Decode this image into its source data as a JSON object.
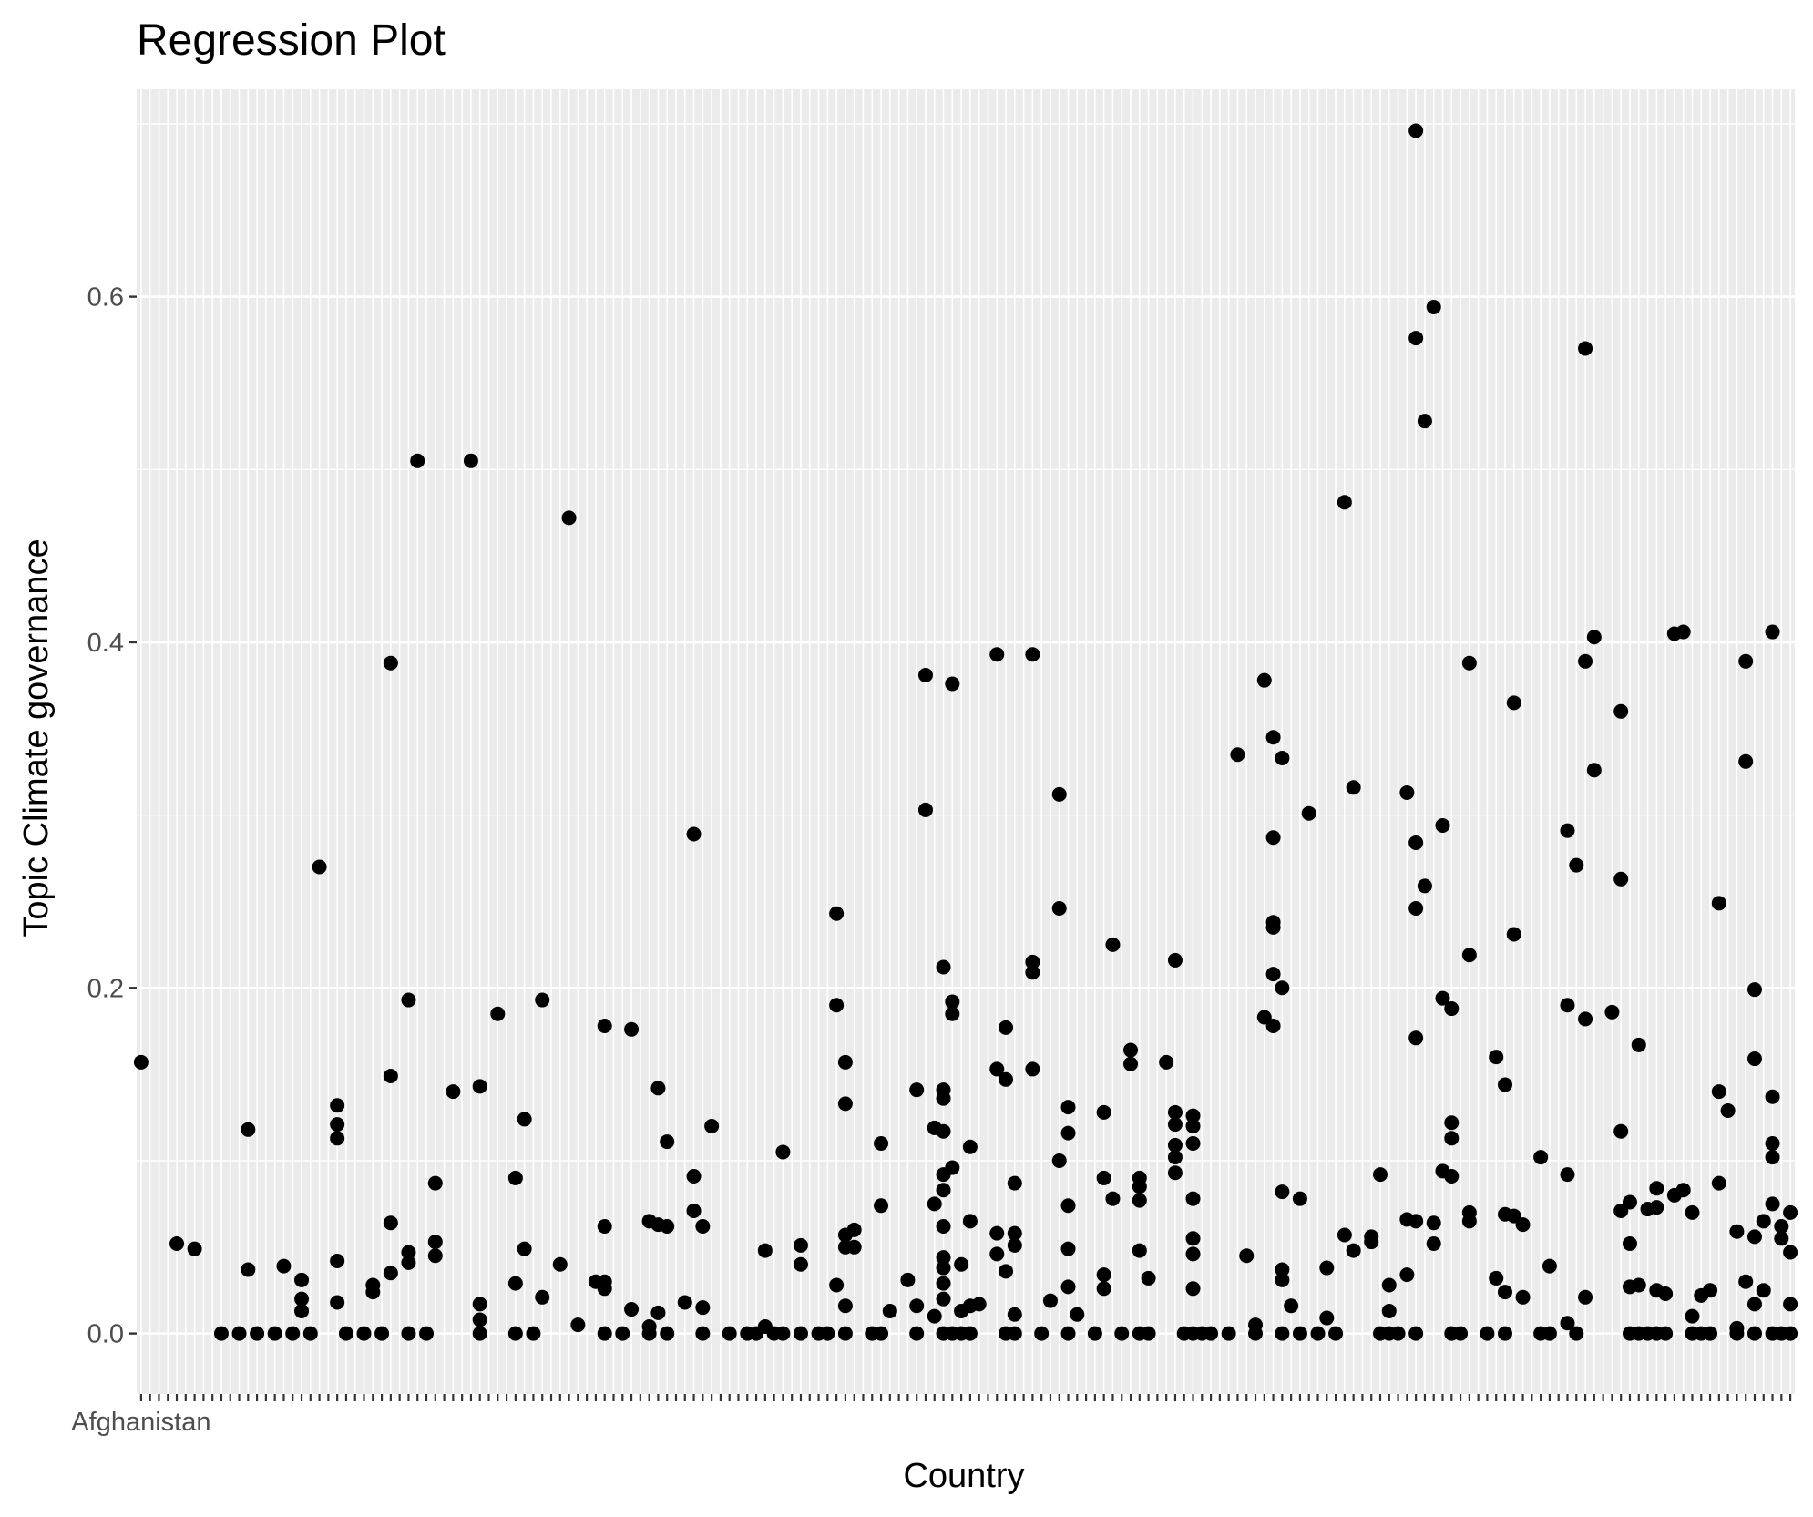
{
  "chart_data": {
    "type": "scatter",
    "title": "Regression Plot",
    "xlabel": "Country",
    "ylabel": "Topic Climate governance",
    "ylim": [
      -0.035,
      0.72
    ],
    "yticks": [
      0.0,
      0.2,
      0.4,
      0.6
    ],
    "ytick_labels": [
      "0.0",
      "0.2",
      "0.4",
      "0.6"
    ],
    "n_categories": 186,
    "first_category_label": "Afghanistan",
    "grid": true,
    "background": "#ebebeb",
    "grid_color": "#ffffff",
    "point_color": "#000000",
    "points": [
      [
        0,
        0.157
      ],
      [
        4,
        0.052
      ],
      [
        6,
        0.049
      ],
      [
        9,
        0.0
      ],
      [
        11,
        0.0
      ],
      [
        12,
        0.037
      ],
      [
        12,
        0.118
      ],
      [
        13,
        0.0
      ],
      [
        15,
        0.0
      ],
      [
        16,
        0.039
      ],
      [
        17,
        0.0
      ],
      [
        18,
        0.031
      ],
      [
        18,
        0.02
      ],
      [
        18,
        0.013
      ],
      [
        19,
        0.0
      ],
      [
        20,
        0.27
      ],
      [
        22,
        0.132
      ],
      [
        22,
        0.121
      ],
      [
        22,
        0.113
      ],
      [
        22,
        0.042
      ],
      [
        22,
        0.018
      ],
      [
        23,
        0.0
      ],
      [
        25,
        0.0
      ],
      [
        26,
        0.028
      ],
      [
        26,
        0.024
      ],
      [
        27,
        0.0
      ],
      [
        28,
        0.388
      ],
      [
        28,
        0.149
      ],
      [
        28,
        0.064
      ],
      [
        28,
        0.035
      ],
      [
        30,
        0.193
      ],
      [
        30,
        0.047
      ],
      [
        30,
        0.041
      ],
      [
        30,
        0.0
      ],
      [
        31,
        0.505
      ],
      [
        32,
        0.0
      ],
      [
        33,
        0.087
      ],
      [
        33,
        0.053
      ],
      [
        33,
        0.045
      ],
      [
        35,
        0.14
      ],
      [
        37,
        0.505
      ],
      [
        38,
        0.143
      ],
      [
        38,
        0.017
      ],
      [
        38,
        0.008
      ],
      [
        38,
        0.0
      ],
      [
        40,
        0.185
      ],
      [
        42,
        0.09
      ],
      [
        42,
        0.029
      ],
      [
        42,
        0.0
      ],
      [
        43,
        0.124
      ],
      [
        43,
        0.049
      ],
      [
        44,
        0.0
      ],
      [
        45,
        0.193
      ],
      [
        45,
        0.021
      ],
      [
        47,
        0.04
      ],
      [
        48,
        0.472
      ],
      [
        49,
        0.005
      ],
      [
        51,
        0.03
      ],
      [
        52,
        0.03
      ],
      [
        52,
        0.178
      ],
      [
        52,
        0.062
      ],
      [
        52,
        0.026
      ],
      [
        52,
        0.0
      ],
      [
        54,
        0.0
      ],
      [
        55,
        0.176
      ],
      [
        55,
        0.014
      ],
      [
        57,
        0.065
      ],
      [
        57,
        0.0
      ],
      [
        57,
        0.004
      ],
      [
        58,
        0.142
      ],
      [
        58,
        0.063
      ],
      [
        58,
        0.012
      ],
      [
        59,
        0.111
      ],
      [
        59,
        0.062
      ],
      [
        59,
        0.0
      ],
      [
        61,
        0.018
      ],
      [
        62,
        0.289
      ],
      [
        62,
        0.091
      ],
      [
        62,
        0.071
      ],
      [
        63,
        0.0
      ],
      [
        63,
        0.015
      ],
      [
        63,
        0.062
      ],
      [
        64,
        0.12
      ],
      [
        66,
        0.0
      ],
      [
        68,
        0.0
      ],
      [
        69,
        0.0
      ],
      [
        70,
        0.048
      ],
      [
        70,
        0.004
      ],
      [
        71,
        0.0
      ],
      [
        72,
        0.0
      ],
      [
        72,
        0.105
      ],
      [
        74,
        0.0
      ],
      [
        74,
        0.04
      ],
      [
        74,
        0.051
      ],
      [
        76,
        0.0
      ],
      [
        77,
        0.0
      ],
      [
        78,
        0.243
      ],
      [
        78,
        0.19
      ],
      [
        78,
        0.028
      ],
      [
        79,
        0.0
      ],
      [
        79,
        0.157
      ],
      [
        79,
        0.133
      ],
      [
        79,
        0.057
      ],
      [
        79,
        0.05
      ],
      [
        79,
        0.016
      ],
      [
        80,
        0.05
      ],
      [
        80,
        0.06
      ],
      [
        82,
        0.0
      ],
      [
        83,
        0.0
      ],
      [
        83,
        0.11
      ],
      [
        83,
        0.074
      ],
      [
        84,
        0.013
      ],
      [
        86,
        0.031
      ],
      [
        87,
        0.0
      ],
      [
        87,
        0.016
      ],
      [
        87,
        0.141
      ],
      [
        88,
        0.381
      ],
      [
        88,
        0.303
      ],
      [
        89,
        0.119
      ],
      [
        89,
        0.075
      ],
      [
        89,
        0.01
      ],
      [
        90,
        0.141
      ],
      [
        90,
        0.136
      ],
      [
        90,
        0.117
      ],
      [
        90,
        0.212
      ],
      [
        90,
        0.092
      ],
      [
        90,
        0.083
      ],
      [
        90,
        0.062
      ],
      [
        90,
        0.044
      ],
      [
        90,
        0.038
      ],
      [
        90,
        0.029
      ],
      [
        90,
        0.02
      ],
      [
        90,
        0.0
      ],
      [
        91,
        0.376
      ],
      [
        91,
        0.192
      ],
      [
        91,
        0.185
      ],
      [
        91,
        0.096
      ],
      [
        91,
        0.0
      ],
      [
        92,
        0.013
      ],
      [
        92,
        0.0
      ],
      [
        92,
        0.04
      ],
      [
        93,
        0.0
      ],
      [
        93,
        0.016
      ],
      [
        93,
        0.108
      ],
      [
        93,
        0.065
      ],
      [
        94,
        0.017
      ],
      [
        96,
        0.393
      ],
      [
        96,
        0.153
      ],
      [
        96,
        0.058
      ],
      [
        96,
        0.046
      ],
      [
        97,
        0.177
      ],
      [
        97,
        0.147
      ],
      [
        97,
        0.036
      ],
      [
        97,
        0.0
      ],
      [
        98,
        0.058
      ],
      [
        98,
        0.051
      ],
      [
        98,
        0.0
      ],
      [
        98,
        0.011
      ],
      [
        98,
        0.087
      ],
      [
        100,
        0.393
      ],
      [
        100,
        0.215
      ],
      [
        100,
        0.209
      ],
      [
        100,
        0.153
      ],
      [
        101,
        0.0
      ],
      [
        102,
        0.019
      ],
      [
        103,
        0.312
      ],
      [
        103,
        0.246
      ],
      [
        103,
        0.1
      ],
      [
        104,
        0.131
      ],
      [
        104,
        0.116
      ],
      [
        104,
        0.074
      ],
      [
        104,
        0.049
      ],
      [
        104,
        0.027
      ],
      [
        104,
        0.0
      ],
      [
        105,
        0.011
      ],
      [
        107,
        0.0
      ],
      [
        108,
        0.128
      ],
      [
        108,
        0.09
      ],
      [
        108,
        0.034
      ],
      [
        108,
        0.026
      ],
      [
        109,
        0.225
      ],
      [
        109,
        0.078
      ],
      [
        110,
        0.0
      ],
      [
        111,
        0.164
      ],
      [
        111,
        0.156
      ],
      [
        112,
        0.09
      ],
      [
        112,
        0.085
      ],
      [
        112,
        0.077
      ],
      [
        112,
        0.048
      ],
      [
        112,
        0.0
      ],
      [
        113,
        0.0
      ],
      [
        113,
        0.032
      ],
      [
        115,
        0.157
      ],
      [
        116,
        0.216
      ],
      [
        116,
        0.128
      ],
      [
        116,
        0.121
      ],
      [
        116,
        0.109
      ],
      [
        116,
        0.102
      ],
      [
        116,
        0.093
      ],
      [
        117,
        0.0
      ],
      [
        118,
        0.126
      ],
      [
        118,
        0.12
      ],
      [
        118,
        0.11
      ],
      [
        118,
        0.078
      ],
      [
        118,
        0.055
      ],
      [
        118,
        0.046
      ],
      [
        118,
        0.026
      ],
      [
        118,
        0.0
      ],
      [
        119,
        0.0
      ],
      [
        120,
        0.0
      ],
      [
        122,
        0.0
      ],
      [
        123,
        0.335
      ],
      [
        124,
        0.045
      ],
      [
        125,
        0.005
      ],
      [
        125,
        0.0
      ],
      [
        126,
        0.378
      ],
      [
        126,
        0.183
      ],
      [
        127,
        0.345
      ],
      [
        127,
        0.287
      ],
      [
        127,
        0.238
      ],
      [
        127,
        0.235
      ],
      [
        127,
        0.208
      ],
      [
        127,
        0.178
      ],
      [
        128,
        0.333
      ],
      [
        128,
        0.2
      ],
      [
        128,
        0.082
      ],
      [
        128,
        0.037
      ],
      [
        128,
        0.031
      ],
      [
        128,
        0.0
      ],
      [
        129,
        0.016
      ],
      [
        130,
        0.078
      ],
      [
        130,
        0.0
      ],
      [
        131,
        0.301
      ],
      [
        132,
        0.0
      ],
      [
        133,
        0.038
      ],
      [
        133,
        0.009
      ],
      [
        134,
        0.0
      ],
      [
        135,
        0.481
      ],
      [
        135,
        0.057
      ],
      [
        136,
        0.316
      ],
      [
        136,
        0.048
      ],
      [
        138,
        0.056
      ],
      [
        138,
        0.053
      ],
      [
        139,
        0.0
      ],
      [
        139,
        0.092
      ],
      [
        140,
        0.0
      ],
      [
        140,
        0.028
      ],
      [
        140,
        0.013
      ],
      [
        141,
        0.0
      ],
      [
        142,
        0.313
      ],
      [
        142,
        0.066
      ],
      [
        142,
        0.034
      ],
      [
        143,
        0.0
      ],
      [
        143,
        0.696
      ],
      [
        143,
        0.576
      ],
      [
        143,
        0.284
      ],
      [
        143,
        0.246
      ],
      [
        143,
        0.171
      ],
      [
        143,
        0.065
      ],
      [
        144,
        0.528
      ],
      [
        144,
        0.259
      ],
      [
        145,
        0.594
      ],
      [
        145,
        0.064
      ],
      [
        145,
        0.052
      ],
      [
        146,
        0.294
      ],
      [
        146,
        0.194
      ],
      [
        146,
        0.094
      ],
      [
        147,
        0.0
      ],
      [
        147,
        0.122
      ],
      [
        147,
        0.113
      ],
      [
        147,
        0.091
      ],
      [
        147,
        0.188
      ],
      [
        148,
        0.0
      ],
      [
        149,
        0.388
      ],
      [
        149,
        0.219
      ],
      [
        149,
        0.07
      ],
      [
        149,
        0.065
      ],
      [
        151,
        0.0
      ],
      [
        152,
        0.16
      ],
      [
        152,
        0.032
      ],
      [
        153,
        0.144
      ],
      [
        153,
        0.069
      ],
      [
        153,
        0.024
      ],
      [
        153,
        0.0
      ],
      [
        154,
        0.365
      ],
      [
        154,
        0.231
      ],
      [
        154,
        0.068
      ],
      [
        155,
        0.063
      ],
      [
        155,
        0.021
      ],
      [
        157,
        0.102
      ],
      [
        157,
        0.0
      ],
      [
        158,
        0.039
      ],
      [
        158,
        0.0
      ],
      [
        160,
        0.291
      ],
      [
        160,
        0.19
      ],
      [
        160,
        0.092
      ],
      [
        160,
        0.006
      ],
      [
        161,
        0.271
      ],
      [
        161,
        0.0
      ],
      [
        162,
        0.57
      ],
      [
        162,
        0.389
      ],
      [
        162,
        0.182
      ],
      [
        162,
        0.021
      ],
      [
        163,
        0.403
      ],
      [
        163,
        0.326
      ],
      [
        165,
        0.186
      ],
      [
        166,
        0.36
      ],
      [
        166,
        0.263
      ],
      [
        166,
        0.117
      ],
      [
        166,
        0.071
      ],
      [
        167,
        0.076
      ],
      [
        167,
        0.052
      ],
      [
        167,
        0.027
      ],
      [
        167,
        0.0
      ],
      [
        168,
        0.167
      ],
      [
        168,
        0.028
      ],
      [
        168,
        0.0
      ],
      [
        169,
        0.072
      ],
      [
        169,
        0.0
      ],
      [
        170,
        0.084
      ],
      [
        170,
        0.073
      ],
      [
        170,
        0.025
      ],
      [
        170,
        0.0
      ],
      [
        171,
        0.023
      ],
      [
        171,
        0.0
      ],
      [
        172,
        0.405
      ],
      [
        172,
        0.08
      ],
      [
        173,
        0.406
      ],
      [
        173,
        0.083
      ],
      [
        174,
        0.07
      ],
      [
        174,
        0.01
      ],
      [
        174,
        0.0
      ],
      [
        175,
        0.022
      ],
      [
        175,
        0.0
      ],
      [
        176,
        0.025
      ],
      [
        176,
        0.0
      ],
      [
        177,
        0.249
      ],
      [
        177,
        0.14
      ],
      [
        177,
        0.087
      ],
      [
        178,
        0.129
      ],
      [
        179,
        0.0
      ],
      [
        179,
        0.059
      ],
      [
        179,
        0.003
      ],
      [
        180,
        0.389
      ],
      [
        180,
        0.331
      ],
      [
        180,
        0.03
      ],
      [
        181,
        0.199
      ],
      [
        181,
        0.159
      ],
      [
        181,
        0.056
      ],
      [
        181,
        0.017
      ],
      [
        181,
        0.0
      ],
      [
        182,
        0.065
      ],
      [
        182,
        0.025
      ],
      [
        183,
        0.0
      ],
      [
        183,
        0.406
      ],
      [
        183,
        0.137
      ],
      [
        183,
        0.11
      ],
      [
        183,
        0.102
      ],
      [
        183,
        0.075
      ],
      [
        184,
        0.062
      ],
      [
        184,
        0.055
      ],
      [
        184,
        0.0
      ],
      [
        185,
        0.07
      ],
      [
        185,
        0.047
      ],
      [
        185,
        0.017
      ],
      [
        185,
        0.0
      ]
    ]
  }
}
